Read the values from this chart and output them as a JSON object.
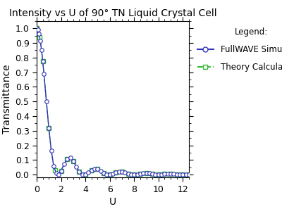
{
  "title": "Intensity vs U of 90° TN Liquid Crystal Cell",
  "xlabel": "U",
  "ylabel": "Transmittance",
  "xlim": [
    0,
    12.5
  ],
  "ylim": [
    -0.02,
    1.05
  ],
  "xticks": [
    0,
    2,
    4,
    6,
    8,
    10,
    12
  ],
  "yticks": [
    0.0,
    0.1,
    0.2,
    0.3,
    0.4,
    0.5,
    0.6,
    0.7,
    0.8,
    0.9,
    1.0
  ],
  "line1_color": "#3333bb",
  "line1_label": "FullWAVE Simulation",
  "line1_style": "-",
  "line1_marker": "o",
  "line2_color": "#33bb33",
  "line2_label": "Theory Calculation",
  "line2_style": "--",
  "line2_marker": "s",
  "legend_title": "Legend:",
  "background_color": "#ffffff",
  "title_fontsize": 10,
  "label_fontsize": 10,
  "tick_fontsize": 9,
  "legend_fontsize": 8.5,
  "marker_size": 4,
  "line_width": 1.0
}
